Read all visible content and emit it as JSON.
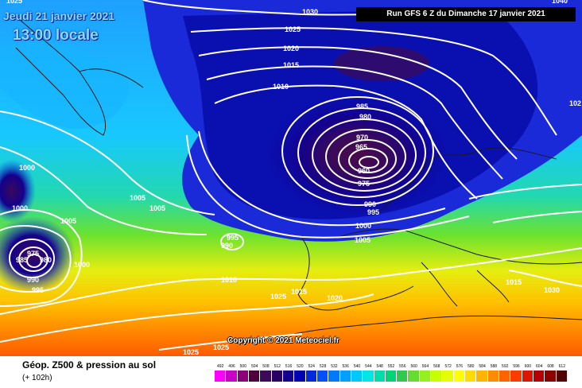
{
  "header": {
    "date": "Jeudi 21 janvier 2021",
    "local_time": "13:00 locale",
    "run": "Run GFS 6 Z du Dimanche 17 janvier 2021"
  },
  "copyright": "Copyright © 2021 Meteociel.fr",
  "isobar_labels": [
    "1025",
    "1030",
    "1025",
    "1020",
    "1015",
    "1010",
    "985",
    "980",
    "970",
    "965",
    "960",
    "975",
    "990",
    "995",
    "1000",
    "1005",
    "1000",
    "1005",
    "1005",
    "1000",
    "975",
    "985",
    "980",
    "990",
    "995",
    "1000",
    "995",
    "990",
    "1005",
    "1010",
    "1015",
    "1020",
    "1025",
    "1030",
    "1015",
    "1025",
    "1025",
    "1040",
    "102"
  ],
  "legend": {
    "title": "Géop. Z500 & pression au sol",
    "subtitle": "(+ 102h)",
    "scale_values": [
      "492",
      "496",
      "500",
      "504",
      "508",
      "512",
      "516",
      "520",
      "524",
      "528",
      "532",
      "536",
      "540",
      "544",
      "548",
      "552",
      "556",
      "560",
      "564",
      "568",
      "572",
      "576",
      "580",
      "584",
      "588",
      "592",
      "596",
      "600",
      "604",
      "608",
      "612"
    ],
    "scale_colors": [
      "#ff00ff",
      "#c800c8",
      "#8c0078",
      "#50003c",
      "#3c0a5a",
      "#280064",
      "#14008c",
      "#0000b4",
      "#0028dc",
      "#0050ff",
      "#0078ff",
      "#00a0ff",
      "#00c8ff",
      "#00e6e6",
      "#00dcaa",
      "#00d278",
      "#32c850",
      "#64dc32",
      "#96f01e",
      "#c8ff00",
      "#e6ff00",
      "#ffff00",
      "#ffdc00",
      "#ffb400",
      "#ff8c00",
      "#ff6400",
      "#ff3c00",
      "#dc1400",
      "#b40000",
      "#8c0000",
      "#500000"
    ]
  }
}
